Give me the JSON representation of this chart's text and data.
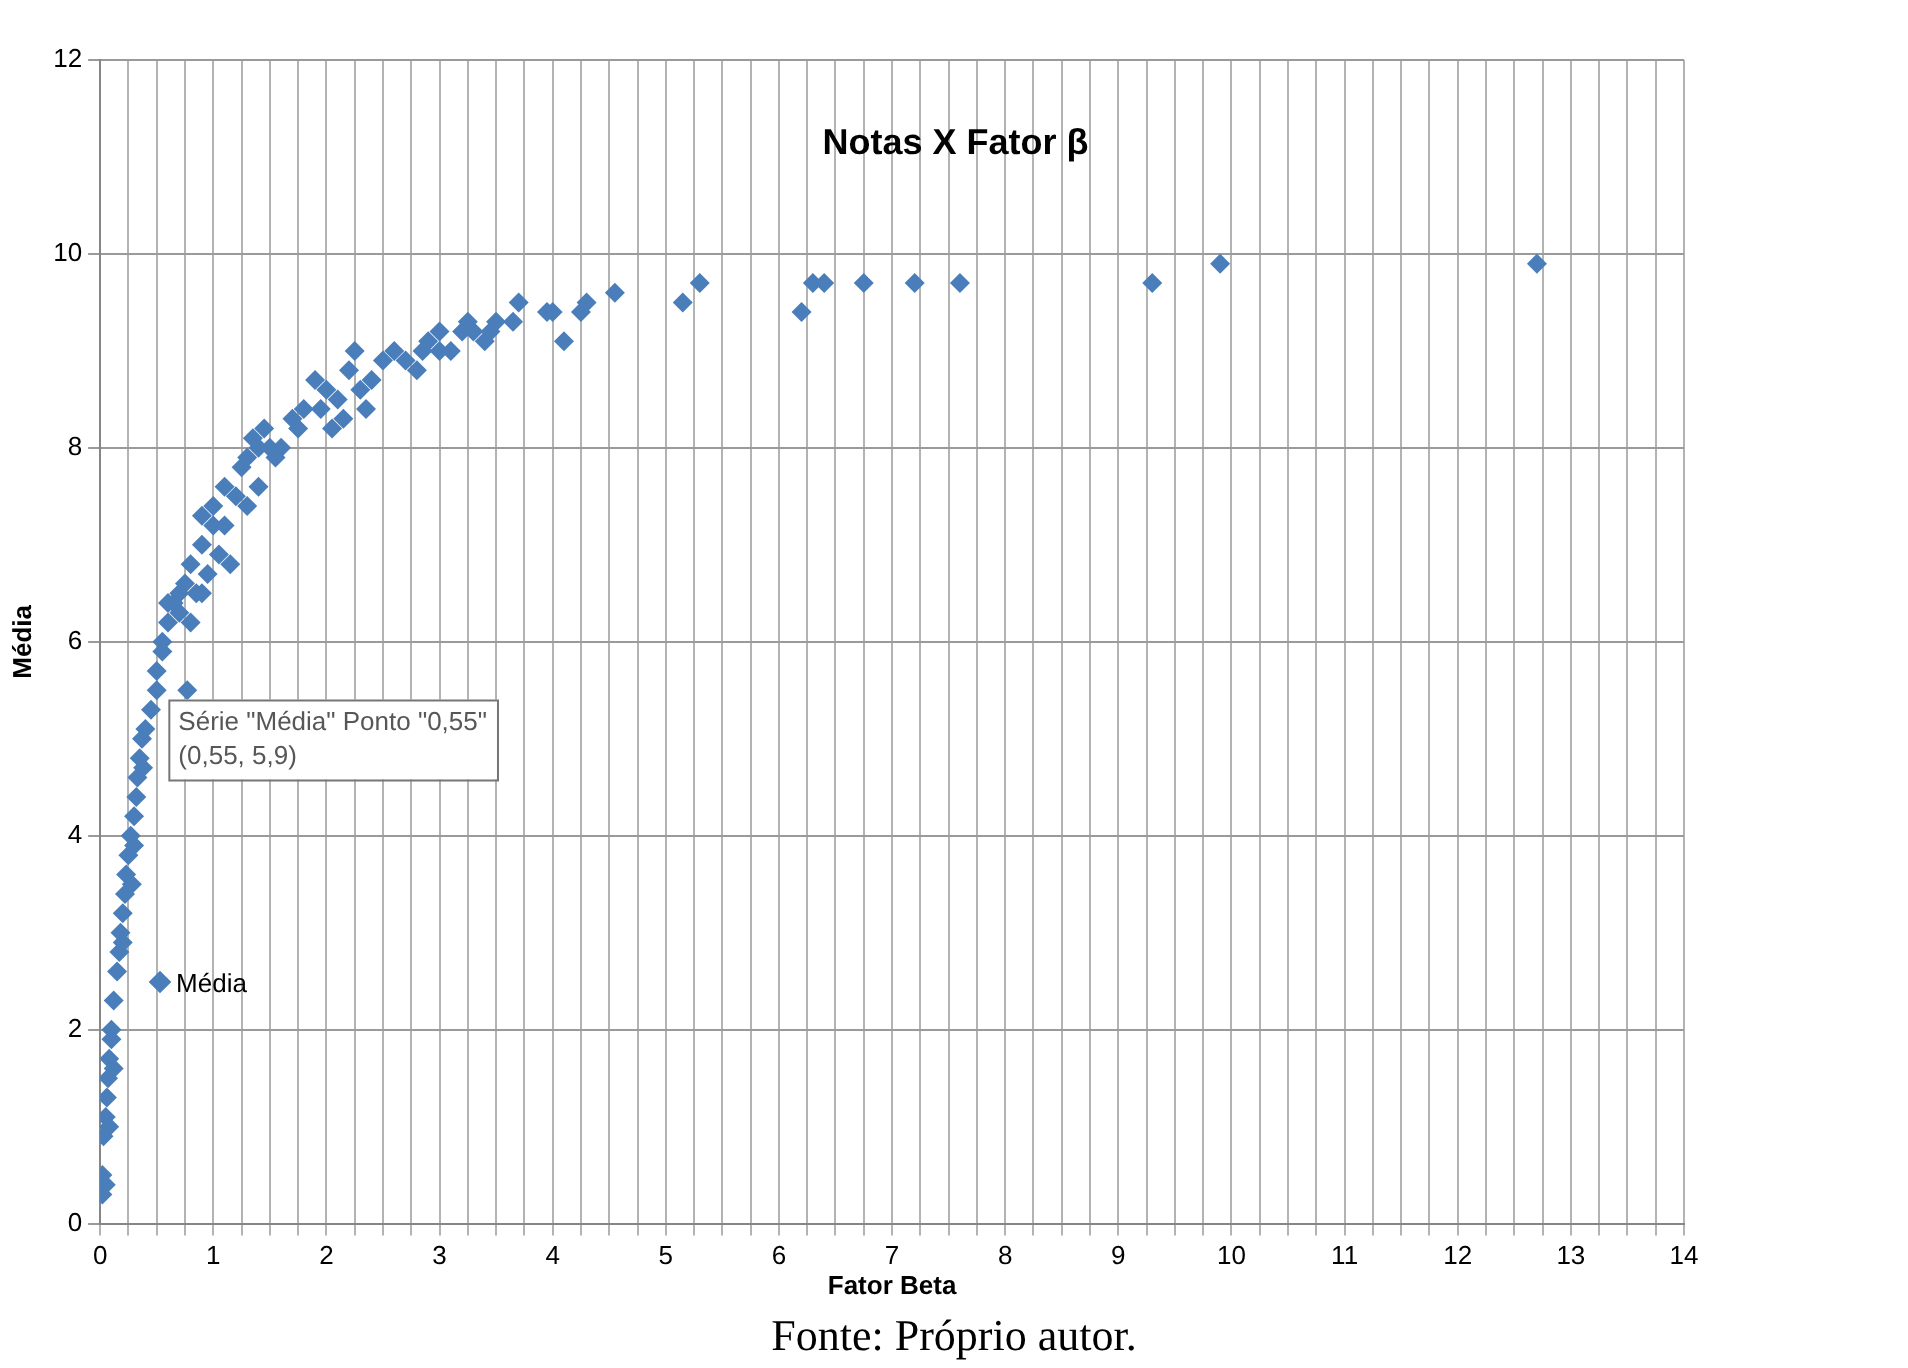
{
  "chart_data": {
    "type": "scatter",
    "title": "Notas X Fator β",
    "xlabel": "Fator Beta",
    "ylabel": "Média",
    "annotations": [
      {
        "text": "Série \"Média\" Ponto \"0,55\"\n(0,55, 5,9)",
        "x": 0.55,
        "y": 5.9
      },
      "Fonte: Próprio autor."
    ],
    "xlim": [
      0,
      14
    ],
    "ylim": [
      0,
      12
    ],
    "xticks": [
      0,
      {
        "value": 0.25,
        "label": null
      },
      {
        "value": 0.5,
        "label": null
      },
      {
        "value": 0.75,
        "label": null
      },
      1,
      {
        "value": 1.25,
        "label": null
      },
      {
        "value": 1.5,
        "label": null
      },
      {
        "value": 1.75,
        "label": null
      },
      2,
      {
        "value": 2.25,
        "label": null
      },
      {
        "value": 2.5,
        "label": null
      },
      {
        "value": 2.75,
        "label": null
      },
      3,
      {
        "value": 3.25,
        "label": null
      },
      {
        "value": 3.5,
        "label": null
      },
      {
        "value": 3.75,
        "label": null
      },
      4,
      {
        "value": 4.25,
        "label": null
      },
      {
        "value": 4.5,
        "label": null
      },
      {
        "value": 4.75,
        "label": null
      },
      5,
      {
        "value": 5.25,
        "label": null
      },
      {
        "value": 5.5,
        "label": null
      },
      {
        "value": 5.75,
        "label": null
      },
      6,
      {
        "value": 6.25,
        "label": null
      },
      {
        "value": 6.5,
        "label": null
      },
      {
        "value": 6.75,
        "label": null
      },
      7,
      {
        "value": 7.25,
        "label": null
      },
      {
        "value": 7.5,
        "label": null
      },
      {
        "value": 7.75,
        "label": null
      },
      8,
      {
        "value": 8.25,
        "label": null
      },
      {
        "value": 8.5,
        "label": null
      },
      {
        "value": 8.75,
        "label": null
      },
      9,
      {
        "value": 9.25,
        "label": null
      },
      {
        "value": 9.5,
        "label": null
      },
      {
        "value": 9.75,
        "label": null
      },
      10,
      {
        "value": 10.25,
        "label": null
      },
      {
        "value": 10.5,
        "label": null
      },
      {
        "value": 10.75,
        "label": null
      },
      11,
      {
        "value": 11.25,
        "label": null
      },
      {
        "value": 11.5,
        "label": null
      },
      {
        "value": 11.75,
        "label": null
      },
      12,
      {
        "value": 12.25,
        "label": null
      },
      {
        "value": 12.5,
        "label": null
      },
      {
        "value": 12.75,
        "label": null
      },
      13,
      {
        "value": 13.25,
        "label": null
      },
      {
        "value": 13.5,
        "label": null
      },
      {
        "value": 13.75,
        "label": null
      },
      14
    ],
    "yticks": [
      0,
      2,
      4,
      6,
      8,
      10,
      12
    ],
    "grid": true,
    "legend": "left",
    "marker": "diamond",
    "series": [
      {
        "name": "Média",
        "color": "#4a7ebb",
        "x": [
          0.02,
          0.02,
          0.05,
          0.03,
          0.05,
          0.06,
          0.07,
          0.08,
          0.1,
          0.1,
          0.12,
          0.15,
          0.17,
          0.18,
          0.2,
          0.22,
          0.23,
          0.25,
          0.27,
          0.3,
          0.32,
          0.33,
          0.35,
          0.37,
          0.4,
          0.45,
          0.5,
          0.5,
          0.55,
          0.55,
          0.6,
          0.65,
          0.7,
          0.75,
          0.77,
          0.8,
          0.85,
          0.9,
          0.9,
          0.95,
          1.0,
          1.05,
          1.1,
          1.1,
          1.2,
          1.25,
          1.3,
          1.35,
          1.4,
          1.45,
          1.5,
          1.6,
          1.7,
          1.8,
          1.9,
          2.0,
          2.05,
          2.1,
          2.2,
          2.25,
          2.3,
          2.35,
          2.4,
          2.5,
          2.6,
          2.7,
          2.8,
          2.85,
          2.9,
          3.0,
          3.0,
          3.1,
          3.2,
          3.25,
          3.3,
          3.4,
          3.45,
          3.5,
          0.08,
          0.12,
          0.2,
          0.28,
          0.3,
          0.38,
          0.6,
          0.7,
          0.8,
          0.9,
          1.0,
          1.15,
          1.3,
          1.4,
          1.55,
          1.75,
          1.95,
          2.15,
          3.65,
          3.7,
          3.95,
          4.0,
          4.1,
          4.25,
          4.3,
          4.55,
          5.15,
          5.3,
          6.2,
          6.3,
          6.4,
          6.75,
          7.2,
          7.6,
          9.3,
          9.9,
          12.7
        ],
        "values": [
          0.3,
          0.5,
          0.4,
          0.9,
          1.1,
          1.3,
          1.5,
          1.7,
          1.9,
          2.0,
          2.3,
          2.6,
          2.8,
          3.0,
          3.2,
          3.4,
          3.6,
          3.8,
          4.0,
          4.2,
          4.4,
          4.6,
          4.8,
          5.0,
          5.1,
          5.3,
          5.5,
          5.7,
          5.9,
          6.0,
          6.2,
          6.4,
          6.5,
          6.6,
          5.5,
          6.8,
          6.5,
          7.0,
          7.3,
          6.7,
          7.4,
          6.9,
          7.6,
          7.2,
          7.5,
          7.8,
          7.9,
          8.1,
          7.6,
          8.2,
          8.0,
          8.0,
          8.3,
          8.4,
          8.7,
          8.6,
          8.2,
          8.5,
          8.8,
          9.0,
          8.6,
          8.4,
          8.7,
          8.9,
          9.0,
          8.9,
          8.8,
          9.0,
          9.1,
          9.2,
          9.0,
          9.0,
          9.2,
          9.3,
          9.2,
          9.1,
          9.2,
          9.3,
          1.0,
          1.6,
          2.9,
          3.5,
          3.9,
          4.7,
          6.4,
          6.3,
          6.2,
          6.5,
          7.2,
          6.8,
          7.4,
          8.0,
          7.9,
          8.2,
          8.4,
          8.3,
          9.3,
          9.5,
          9.4,
          9.4,
          9.1,
          9.4,
          9.5,
          9.6,
          9.5,
          9.7,
          9.4,
          9.7,
          9.7,
          9.7,
          9.7,
          9.7,
          9.7,
          9.9,
          9.9
        ]
      }
    ]
  }
}
